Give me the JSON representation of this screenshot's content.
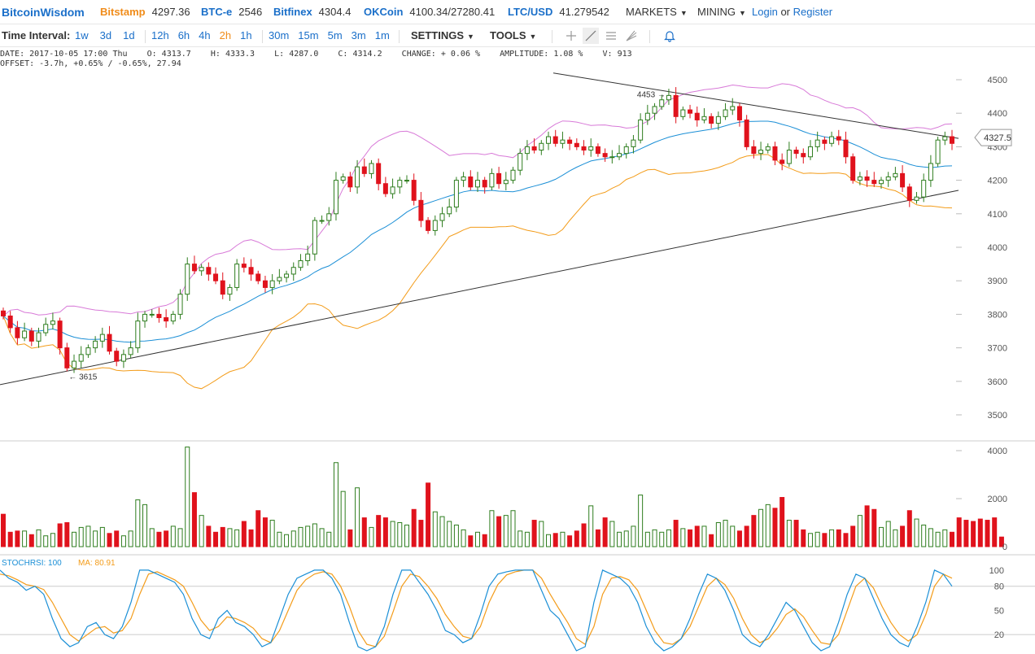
{
  "topbar": {
    "brand": "BitcoinWisdom",
    "exchanges": [
      {
        "name": "Bitstamp",
        "price": "4297.36",
        "color": "#f08c1a"
      },
      {
        "name": "BTC-e",
        "price": "2546",
        "color": "#1a6fc9"
      },
      {
        "name": "Bitfinex",
        "price": "4304.4",
        "color": "#1a6fc9"
      },
      {
        "name": "OKCoin",
        "price": "4100.34/27280.41",
        "color": "#1a6fc9"
      },
      {
        "name": "LTC/USD",
        "price": "41.279542",
        "color": "#1a6fc9"
      }
    ],
    "markets": "MARKETS",
    "mining": "MINING",
    "login": "Login",
    "or": "or",
    "register": "Register"
  },
  "toolbar": {
    "interval_label": "Time Interval:",
    "intervals_a": [
      "1w",
      "3d",
      "1d"
    ],
    "intervals_b": [
      "12h",
      "6h",
      "4h",
      "2h",
      "1h"
    ],
    "intervals_c": [
      "30m",
      "15m",
      "5m",
      "3m",
      "1m"
    ],
    "active_interval": "2h",
    "settings": "SETTINGS",
    "tools": "TOOLS"
  },
  "info": {
    "line1": "DATE: 2017-10-05 17:00 Thu    O: 4313.7    H: 4333.3    L: 4287.0    C: 4314.2    CHANGE: + 0.06 %    AMPLITUDE: 1.08 %    V: 913",
    "line2": "OFFSET: -3.7h, +0.65% / -0.65%, 27.94"
  },
  "colors": {
    "up": "#2e7d1e",
    "down": "#e0121c",
    "mid": "#1b8fd6",
    "upper": "#d87ad8",
    "lower": "#f39c1a",
    "stoch": "#1b8fd6",
    "stoch_ma": "#f39c1a",
    "trend": "#333333"
  },
  "chart_data": [
    {
      "type": "candlestick",
      "yticks": [
        3500,
        3600,
        3700,
        3800,
        3900,
        4000,
        4100,
        4200,
        4300,
        4400,
        4500
      ],
      "ylim": [
        3460,
        4530
      ],
      "current_price": "4327.5",
      "annotations": [
        {
          "text": "4453 →",
          "value": 4453
        },
        {
          "text": "← 3615",
          "value": 3615
        }
      ],
      "closes": [
        3795,
        3760,
        3730,
        3750,
        3720,
        3745,
        3770,
        3780,
        3700,
        3640,
        3660,
        3680,
        3700,
        3720,
        3740,
        3690,
        3660,
        3680,
        3700,
        3780,
        3800,
        3800,
        3790,
        3780,
        3800,
        3860,
        3950,
        3930,
        3940,
        3920,
        3900,
        3860,
        3880,
        3950,
        3940,
        3920,
        3900,
        3880,
        3900,
        3910,
        3920,
        3940,
        3960,
        3980,
        4080,
        4080,
        4100,
        4200,
        4210,
        4180,
        4240,
        4220,
        4250,
        4190,
        4160,
        4180,
        4200,
        4200,
        4140,
        4080,
        4050,
        4080,
        4100,
        4120,
        4200,
        4210,
        4180,
        4200,
        4180,
        4220,
        4190,
        4200,
        4230,
        4280,
        4300,
        4290,
        4310,
        4330,
        4310,
        4320,
        4310,
        4300,
        4290,
        4300,
        4280,
        4270,
        4270,
        4280,
        4300,
        4320,
        4380,
        4400,
        4420,
        4440,
        4453,
        4390,
        4410,
        4400,
        4380,
        4390,
        4370,
        4390,
        4410,
        4420,
        4380,
        4300,
        4280,
        4290,
        4300,
        4260,
        4250,
        4290,
        4280,
        4270,
        4300,
        4320,
        4310,
        4330,
        4320,
        4270,
        4200,
        4210,
        4200,
        4190,
        4200,
        4210,
        4220,
        4180,
        4140,
        4150,
        4200,
        4250,
        4320,
        4330,
        4310
      ],
      "volume_yticks": [
        0,
        2000,
        4000
      ],
      "volumes": [
        1350,
        600,
        650,
        650,
        500,
        700,
        450,
        550,
        950,
        1000,
        600,
        800,
        850,
        650,
        800,
        550,
        650,
        450,
        650,
        1950,
        1750,
        750,
        600,
        650,
        850,
        750,
        4150,
        2250,
        1300,
        850,
        600,
        800,
        750,
        700,
        1050,
        700,
        1500,
        1200,
        1100,
        600,
        500,
        650,
        800,
        850,
        950,
        750,
        600,
        3500,
        2300,
        700,
        2450,
        1200,
        800,
        1300,
        1200,
        1050,
        1000,
        900,
        1550,
        1100,
        2650,
        1450,
        1250,
        1050,
        900,
        700,
        450,
        600,
        500,
        1500,
        1250,
        1300,
        1500,
        650,
        600,
        1100,
        1050,
        500,
        550,
        600,
        450,
        650,
        950,
        1700,
        700,
        1200,
        1050,
        600,
        650,
        850,
        2150,
        600,
        700,
        600,
        700,
        1100,
        750,
        700,
        850,
        850,
        500,
        1000,
        1100,
        850,
        650,
        850,
        1300,
        1550,
        1750,
        1600,
        2050,
        1100,
        1100,
        700,
        550,
        600,
        550,
        700,
        700,
        550,
        850,
        1300,
        1700,
        1550,
        800,
        1050,
        700,
        850,
        1500,
        1150,
        900,
        750,
        600,
        700,
        600,
        1200,
        1100,
        1050,
        1150,
        1100,
        1200,
        400
      ],
      "stoch_label": "STOCHRSI: 100",
      "stoch_ma_label": "MA: 80.91",
      "stoch_yticks": [
        20,
        50,
        80,
        100
      ],
      "stochrsi": [
        100,
        90,
        85,
        75,
        80,
        70,
        40,
        15,
        5,
        10,
        30,
        35,
        20,
        15,
        30,
        60,
        100,
        100,
        95,
        90,
        85,
        70,
        40,
        20,
        15,
        40,
        50,
        35,
        30,
        20,
        5,
        10,
        40,
        70,
        90,
        95,
        100,
        100,
        90,
        70,
        35,
        5,
        0,
        5,
        30,
        70,
        100,
        100,
        85,
        70,
        50,
        25,
        20,
        10,
        15,
        45,
        80,
        95,
        98,
        100,
        100,
        100,
        75,
        50,
        40,
        20,
        0,
        5,
        60,
        100,
        95,
        90,
        80,
        60,
        30,
        10,
        0,
        5,
        15,
        40,
        70,
        95,
        90,
        75,
        50,
        20,
        10,
        5,
        20,
        40,
        60,
        50,
        30,
        10,
        0,
        5,
        35,
        70,
        95,
        90,
        65,
        40,
        20,
        10,
        5,
        30,
        60,
        100,
        95,
        80
      ],
      "stoch_ma": [
        95,
        93,
        88,
        82,
        80,
        76,
        60,
        40,
        20,
        12,
        20,
        28,
        30,
        22,
        25,
        40,
        70,
        95,
        98,
        93,
        88,
        80,
        60,
        38,
        25,
        30,
        42,
        40,
        35,
        28,
        15,
        10,
        25,
        50,
        75,
        88,
        95,
        98,
        95,
        80,
        55,
        25,
        8,
        5,
        18,
        48,
        80,
        95,
        92,
        80,
        65,
        45,
        30,
        18,
        15,
        30,
        60,
        82,
        94,
        98,
        100,
        100,
        90,
        70,
        52,
        35,
        15,
        8,
        30,
        70,
        90,
        92,
        88,
        75,
        50,
        25,
        10,
        8,
        15,
        30,
        55,
        80,
        90,
        82,
        65,
        40,
        20,
        10,
        15,
        28,
        45,
        52,
        42,
        25,
        10,
        8,
        20,
        50,
        80,
        90,
        78,
        55,
        35,
        20,
        12,
        20,
        45,
        80,
        95,
        90
      ]
    }
  ]
}
